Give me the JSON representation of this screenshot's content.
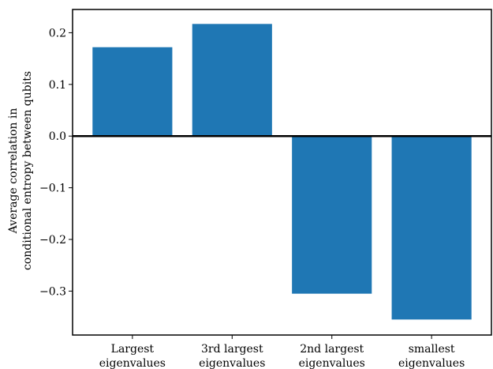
{
  "chart_data": {
    "type": "bar",
    "categories": [
      [
        "Largest",
        "eigenvalues"
      ],
      [
        "3rd largest",
        "eigenvalues"
      ],
      [
        "2nd largest",
        "eigenvalues"
      ],
      [
        "smallest",
        "eigenvalues"
      ]
    ],
    "values": [
      0.172,
      0.217,
      -0.305,
      -0.355
    ],
    "ylabel": [
      "Average correlation in",
      "conditional entropy between qubits"
    ],
    "xlabel": "",
    "title": "",
    "ylim": [
      -0.385,
      0.245
    ],
    "yticks": [
      0.2,
      0.1,
      0.0,
      -0.1,
      -0.2,
      -0.3
    ],
    "ytick_labels": [
      "0.2",
      "0.1",
      "0.0",
      "−0.1",
      "−0.2",
      "−0.3"
    ],
    "bar_color": "#1f77b4",
    "zero_line": true,
    "grid": false,
    "legend": "none"
  }
}
